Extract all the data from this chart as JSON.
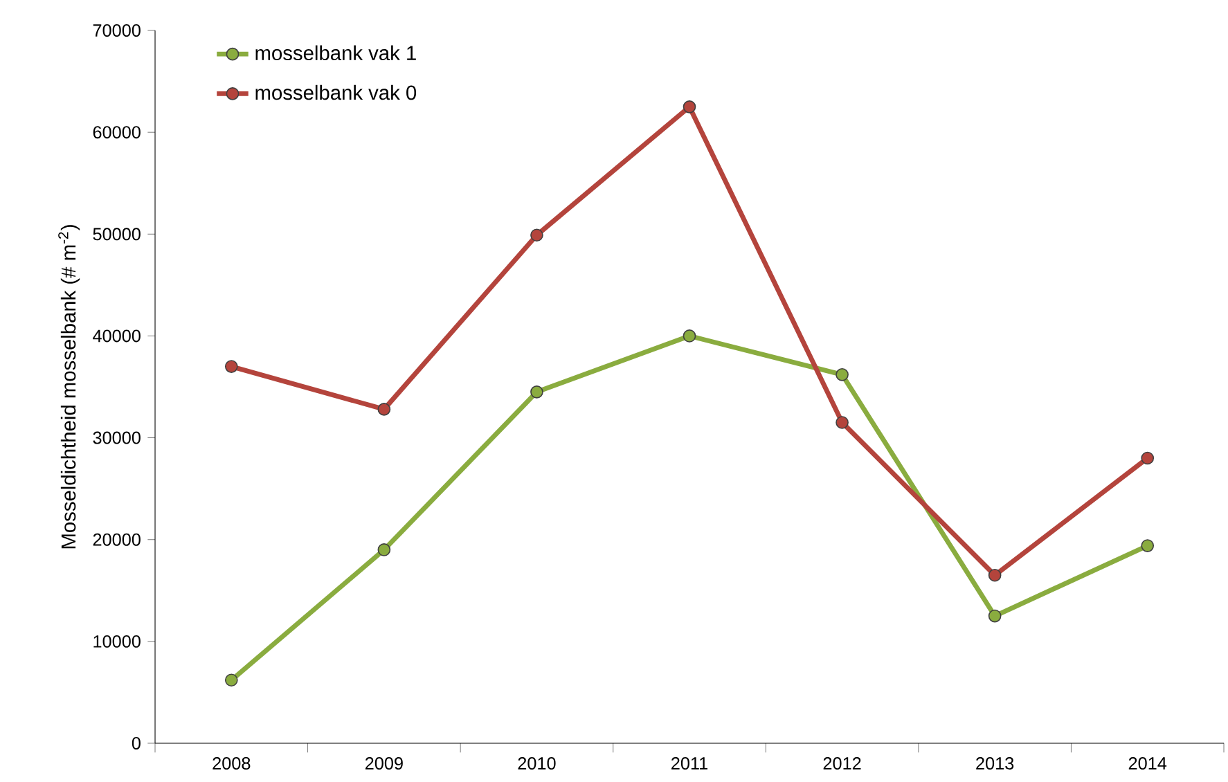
{
  "chart_data": {
    "type": "line",
    "ylabel": "Mosseldichtheid mosselbank (# m$^{-2}$)",
    "categories": [
      "2008",
      "2009",
      "2010",
      "2011",
      "2012",
      "2013",
      "2014"
    ],
    "series": [
      {
        "name": "mosselbank vak 1",
        "color": "#8aac3f",
        "values": [
          6200,
          19000,
          34500,
          40000,
          36200,
          12500,
          19400
        ]
      },
      {
        "name": "mosselbank vak 0",
        "color": "#b4443c",
        "values": [
          37000,
          32800,
          49900,
          62500,
          31500,
          16500,
          28000
        ]
      }
    ],
    "ylim": [
      0,
      70000
    ],
    "yticks": [
      0,
      10000,
      20000,
      30000,
      40000,
      50000,
      60000,
      70000
    ],
    "grid": false,
    "legend": "top left",
    "marker": "circle",
    "line_style": "solid"
  }
}
